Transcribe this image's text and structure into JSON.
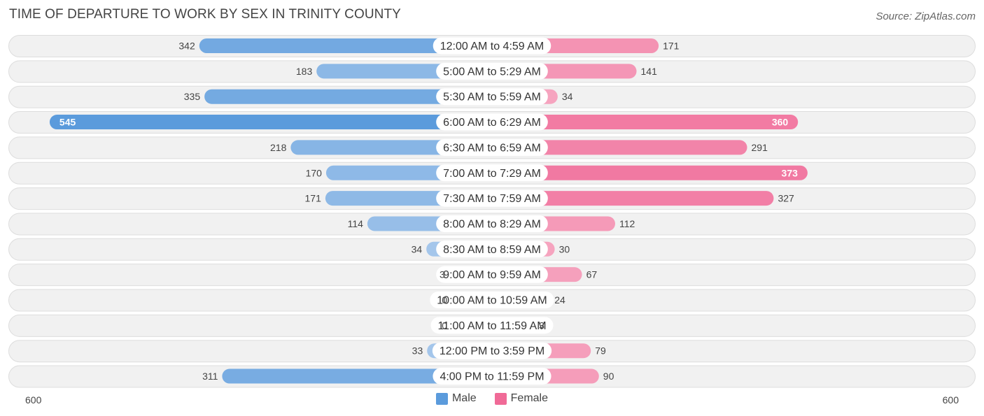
{
  "title": "TIME OF DEPARTURE TO WORK BY SEX IN TRINITY COUNTY",
  "source": "Source: ZipAtlas.com",
  "colors": {
    "male_strong": "#5b9bdc",
    "male_light": "#a9c9ec",
    "female_strong": "#f06a97",
    "female_light": "#f6a8c2",
    "row_bg": "#f1f1f1",
    "row_border": "#dddddd"
  },
  "chart_data": {
    "type": "bar",
    "orientation": "horizontal-diverging",
    "title": "TIME OF DEPARTURE TO WORK BY SEX IN TRINITY COUNTY",
    "categories": [
      "12:00 AM to 4:59 AM",
      "5:00 AM to 5:29 AM",
      "5:30 AM to 5:59 AM",
      "6:00 AM to 6:29 AM",
      "6:30 AM to 6:59 AM",
      "7:00 AM to 7:29 AM",
      "7:30 AM to 7:59 AM",
      "8:00 AM to 8:29 AM",
      "8:30 AM to 8:59 AM",
      "9:00 AM to 9:59 AM",
      "10:00 AM to 10:59 AM",
      "11:00 AM to 11:59 AM",
      "12:00 PM to 3:59 PM",
      "4:00 PM to 11:59 PM"
    ],
    "series": [
      {
        "name": "Male",
        "values": [
          342,
          183,
          335,
          545,
          218,
          170,
          171,
          114,
          34,
          3,
          0,
          0,
          33,
          311
        ]
      },
      {
        "name": "Female",
        "values": [
          171,
          141,
          34,
          360,
          291,
          373,
          327,
          112,
          30,
          67,
          24,
          3,
          79,
          90
        ]
      }
    ],
    "axis": {
      "left_label": "600",
      "right_label": "600",
      "max": 600
    },
    "legend": [
      "Male",
      "Female"
    ],
    "legend_position": "bottom-center"
  }
}
